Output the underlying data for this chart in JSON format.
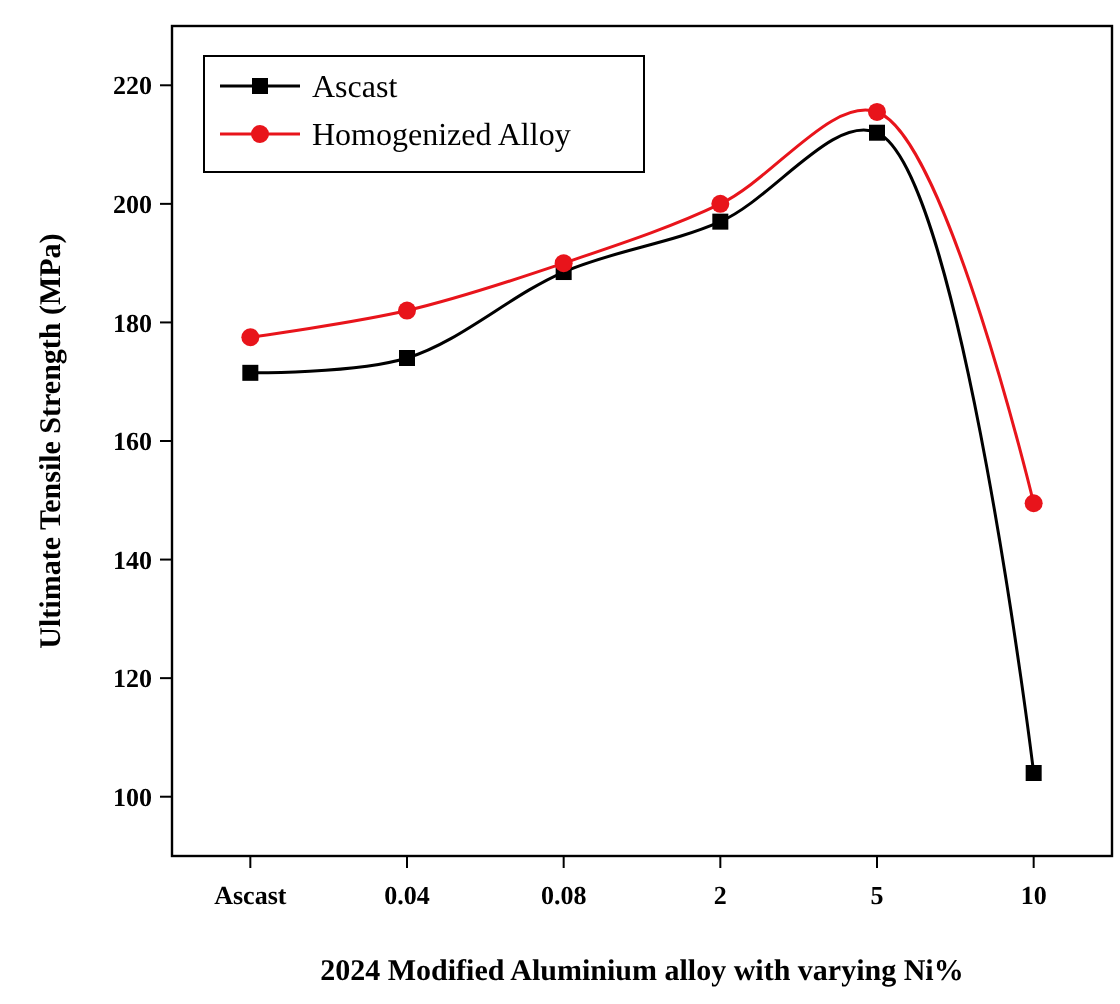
{
  "chart_data": {
    "type": "line",
    "xlabel": "2024 Modified Aluminium alloy with varying Ni%",
    "ylabel": "Ultimate Tensile Strength (MPa)",
    "categories": [
      "Ascast",
      "0.04",
      "0.08",
      "2",
      "5",
      "10"
    ],
    "series": [
      {
        "name": "Ascast",
        "color": "#000000",
        "marker": "square",
        "values": [
          171.5,
          174,
          188.5,
          197,
          212,
          104
        ]
      },
      {
        "name": "Homogenized Alloy",
        "color": "#e8141b",
        "marker": "circle",
        "values": [
          177.5,
          182,
          190,
          200,
          215.5,
          149.5
        ]
      }
    ],
    "ylim": [
      90,
      230
    ],
    "yticks": [
      100,
      120,
      140,
      160,
      180,
      200,
      220
    ],
    "grid": false,
    "legend": "top left"
  }
}
